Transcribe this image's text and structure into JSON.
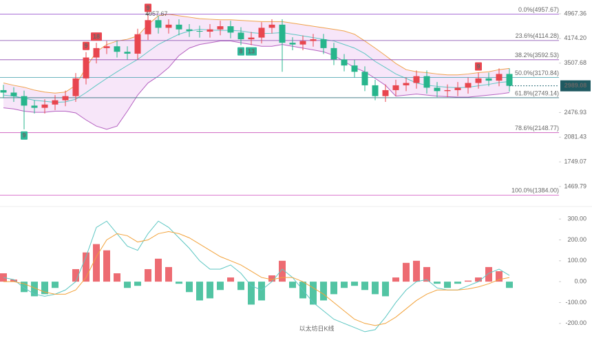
{
  "chart_data": [
    {
      "type": "candlestick",
      "scale": "log",
      "ylim": [
        1308,
        5474
      ],
      "yticks": [
        4967.36,
        {
          "value": 4174.2,
          "label": "4174.20"
        },
        3507.68,
        2476.93,
        2081.43,
        1749.07,
        1469.79
      ],
      "colors": {
        "up": "#e8464f",
        "down": "#27b58c",
        "upper": "#f0a24a",
        "middle": "#5bc6c2",
        "lower": "#b45fc0",
        "band": "#f3dcf7"
      },
      "open": [
        2900,
        2850,
        2780,
        2600,
        2560,
        2620,
        2700,
        2780,
        3150,
        3650,
        3900,
        3950,
        3800,
        3750,
        4300,
        4750,
        4500,
        4600,
        4450,
        4400,
        4380,
        4450,
        4550,
        4350,
        4150,
        4200,
        4500,
        4600,
        4050,
        4000,
        4100,
        4150,
        3900,
        3600,
        3450,
        3300,
        3000,
        2780,
        2900,
        3000,
        3050,
        3200,
        2950,
        2880,
        2900,
        2950,
        3050,
        3150,
        3100,
        3250
      ],
      "high": [
        3010,
        2960,
        2890,
        2700,
        2720,
        2800,
        2890,
        3270,
        3790,
        4050,
        4100,
        4100,
        3950,
        4470,
        4957.67,
        4900,
        4780,
        4780,
        4620,
        4570,
        4620,
        4730,
        4730,
        4520,
        4370,
        4680,
        4780,
        4780,
        4210,
        4260,
        4310,
        4310,
        4050,
        3740,
        3590,
        3430,
        3120,
        3020,
        3120,
        3170,
        3330,
        3330,
        3070,
        3020,
        3070,
        3170,
        3280,
        3280,
        3380,
        3380
      ],
      "low": [
        2740,
        2670,
        2200,
        2460,
        2460,
        2520,
        2590,
        2670,
        3020,
        3500,
        3740,
        3650,
        3600,
        3600,
        4130,
        4320,
        4320,
        4270,
        4220,
        4200,
        4200,
        4270,
        4180,
        3980,
        3980,
        4030,
        4320,
        3300,
        3840,
        3840,
        3940,
        3740,
        3460,
        3310,
        3170,
        2880,
        2700,
        2670,
        2780,
        2880,
        2930,
        2830,
        2760,
        2760,
        2780,
        2830,
        2930,
        2980,
        2980,
        2870
      ],
      "close": [
        2850,
        2780,
        2600,
        2560,
        2620,
        2700,
        2780,
        3150,
        3650,
        3900,
        3950,
        3800,
        3750,
        4300,
        4750,
        4500,
        4600,
        4450,
        4400,
        4380,
        4450,
        4550,
        4350,
        4150,
        4200,
        4500,
        4600,
        4050,
        4000,
        4100,
        4150,
        3900,
        3600,
        3450,
        3300,
        3000,
        2780,
        2900,
        3000,
        3050,
        3200,
        2950,
        2880,
        2900,
        2950,
        3050,
        3150,
        3100,
        3250,
        2989.08
      ],
      "upper": [
        3050,
        3000,
        2960,
        2900,
        2860,
        2840,
        2860,
        3000,
        3400,
        3800,
        4000,
        4100,
        4150,
        4250,
        4600,
        4900,
        4950,
        4900,
        4850,
        4800,
        4780,
        4760,
        4760,
        4740,
        4720,
        4700,
        4700,
        4700,
        4650,
        4600,
        4550,
        4500,
        4450,
        4400,
        4300,
        4100,
        3900,
        3700,
        3500,
        3350,
        3300,
        3280,
        3250,
        3230,
        3230,
        3250,
        3280,
        3300,
        3350,
        3380
      ],
      "middle": [
        2800,
        2780,
        2740,
        2700,
        2680,
        2660,
        2670,
        2720,
        2850,
        3000,
        3150,
        3300,
        3450,
        3600,
        3800,
        4000,
        4150,
        4300,
        4400,
        4450,
        4430,
        4420,
        4420,
        4400,
        4350,
        4320,
        4330,
        4350,
        4300,
        4250,
        4200,
        4150,
        4100,
        4000,
        3900,
        3750,
        3550,
        3400,
        3250,
        3150,
        3050,
        3000,
        2980,
        2960,
        2950,
        2960,
        2990,
        3020,
        3060,
        3080
      ],
      "lower": [
        2560,
        2540,
        2500,
        2480,
        2480,
        2500,
        2500,
        2470,
        2350,
        2250,
        2200,
        2250,
        2500,
        2800,
        3050,
        3200,
        3400,
        3700,
        3900,
        4000,
        4050,
        4100,
        4100,
        4050,
        4000,
        3950,
        3950,
        4000,
        3950,
        3900,
        3850,
        3800,
        3700,
        3550,
        3400,
        3300,
        3150,
        3000,
        2780,
        2800,
        2820,
        2800,
        2780,
        2770,
        2760,
        2760,
        2780,
        2800,
        2820,
        2850
      ],
      "fib_levels": [
        {
          "value": 4957.67,
          "label": "0.0%(4957.67)",
          "color": "#9b59d0"
        },
        {
          "value": 4114.28,
          "label": "23.6%(4114.28)",
          "color": "#7b3fa8"
        },
        {
          "value": 3592.53,
          "label": "38.2%(3592.53)",
          "color": "#8e44ad"
        },
        {
          "value": 3170.84,
          "label": "50.0%(3170.84)",
          "color": "#3a9ca8"
        },
        {
          "value": 2749.14,
          "label": "61.8%(2749.14)",
          "color": "#2c6e7a"
        },
        {
          "value": 2148.77,
          "label": "78.6%(2148.77)",
          "color": "#c94fb8"
        },
        {
          "value": 1384.0,
          "label": "100.0%(1384.00)",
          "color": "#d04fc0"
        }
      ],
      "last_price": 2989.08,
      "high_annotation": 4957.67,
      "badges": [
        {
          "text": "9",
          "color": "#2fb89a"
        },
        {
          "text": "9",
          "color": "#e8464f"
        },
        {
          "text": "18",
          "color": "#e8464f"
        },
        {
          "text": "9",
          "color": "#e8464f"
        },
        {
          "text": "8",
          "color": "#2fb89a"
        },
        {
          "text": "13",
          "color": "#2fb89a"
        },
        {
          "text": "9",
          "color": "#e8464f"
        }
      ]
    },
    {
      "type": "macd",
      "title": "以太坊日K线",
      "ylim": [
        -270,
        360
      ],
      "yticks": [
        {
          "value": 300,
          "label": "300.00"
        },
        {
          "value": 200,
          "label": "200.00"
        },
        {
          "value": 100,
          "label": "100.00"
        },
        {
          "value": 0,
          "label": "0.00"
        },
        {
          "value": -100,
          "label": "-100.00"
        },
        {
          "value": -200,
          "label": "-200.00"
        }
      ],
      "colors": {
        "up": "#e8464f",
        "down": "#27b58c",
        "dif": "#5bc6c2",
        "dea": "#f2a23a"
      },
      "hist": [
        40,
        10,
        -50,
        -70,
        -60,
        -30,
        0,
        60,
        140,
        180,
        150,
        40,
        -30,
        -20,
        60,
        110,
        70,
        -10,
        -50,
        -90,
        -80,
        -40,
        20,
        -40,
        -110,
        -90,
        30,
        100,
        -30,
        -80,
        -110,
        -90,
        -60,
        -30,
        -20,
        -40,
        -60,
        -70,
        20,
        90,
        100,
        70,
        -10,
        -30,
        -10,
        5,
        20,
        70,
        50,
        -30
      ],
      "dif": [
        20,
        10,
        -30,
        -60,
        -70,
        -60,
        -40,
        0,
        120,
        260,
        290,
        230,
        170,
        150,
        230,
        290,
        260,
        210,
        160,
        100,
        60,
        60,
        80,
        40,
        -20,
        -40,
        0,
        60,
        20,
        -40,
        -100,
        -140,
        -180,
        -200,
        -220,
        -240,
        -230,
        -170,
        -100,
        -40,
        0,
        10,
        -30,
        -40,
        -40,
        -20,
        0,
        40,
        60,
        30
      ],
      "dea": [
        0,
        0,
        -10,
        -30,
        -50,
        -60,
        -60,
        -40,
        20,
        120,
        200,
        230,
        220,
        190,
        200,
        230,
        240,
        230,
        210,
        180,
        150,
        120,
        100,
        80,
        50,
        20,
        10,
        20,
        20,
        0,
        -30,
        -60,
        -100,
        -140,
        -180,
        -200,
        -210,
        -200,
        -170,
        -130,
        -90,
        -60,
        -40,
        -40,
        -40,
        -35,
        -25,
        -10,
        10,
        20
      ]
    }
  ]
}
